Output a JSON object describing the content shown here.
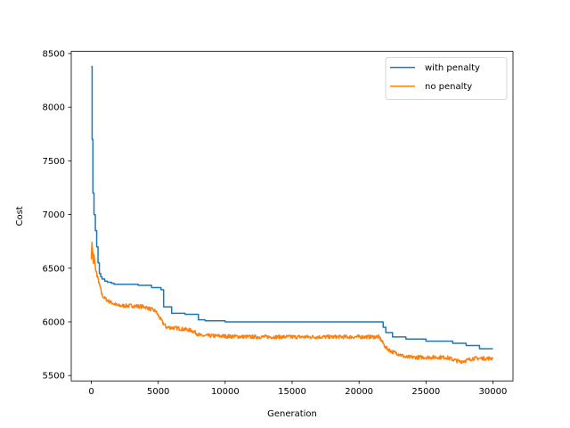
{
  "chart_data": {
    "type": "line",
    "title": "",
    "xlabel": "Generation",
    "ylabel": "Cost",
    "xlim": [
      -1500,
      31500
    ],
    "ylim": [
      5450,
      8520
    ],
    "xticks": [
      0,
      5000,
      10000,
      15000,
      20000,
      25000,
      30000
    ],
    "yticks": [
      5500,
      6000,
      6500,
      7000,
      7500,
      8000,
      8500
    ],
    "grid": false,
    "legend_position": "top-right",
    "series": [
      {
        "name": "with penalty",
        "color": "#1f77b4",
        "style": "step",
        "x": [
          0,
          60,
          120,
          200,
          300,
          400,
          500,
          600,
          700,
          800,
          1000,
          1200,
          1500,
          1700,
          3500,
          4500,
          5200,
          5400,
          6000,
          7000,
          8000,
          8500,
          10000,
          15000,
          20000,
          21600,
          21800,
          22000,
          22500,
          23500,
          25000,
          26500,
          27000,
          28000,
          29000,
          30000
        ],
        "y": [
          8380,
          7700,
          7200,
          7000,
          6850,
          6700,
          6550,
          6450,
          6420,
          6400,
          6380,
          6370,
          6360,
          6350,
          6340,
          6320,
          6300,
          6140,
          6080,
          6070,
          6020,
          6010,
          6000,
          6000,
          6000,
          6000,
          5950,
          5900,
          5860,
          5840,
          5820,
          5820,
          5800,
          5780,
          5750,
          5750
        ]
      },
      {
        "name": "no penalty",
        "color": "#ff7f0e",
        "style": "noisy",
        "x": [
          0,
          50,
          100,
          150,
          200,
          300,
          400,
          500,
          600,
          700,
          800,
          1000,
          1200,
          1500,
          2000,
          3000,
          4000,
          4800,
          5300,
          5600,
          6500,
          7500,
          8200,
          9000,
          12000,
          16000,
          20000,
          21500,
          21800,
          22000,
          22500,
          23000,
          23500,
          25000,
          26500,
          27000,
          27500,
          28000,
          28500,
          29000,
          30000
        ],
        "y": [
          6600,
          6750,
          6650,
          6550,
          6620,
          6500,
          6450,
          6400,
          6350,
          6300,
          6250,
          6220,
          6200,
          6180,
          6150,
          6150,
          6140,
          6100,
          6000,
          5950,
          5940,
          5920,
          5870,
          5870,
          5860,
          5860,
          5860,
          5860,
          5800,
          5760,
          5720,
          5700,
          5670,
          5670,
          5670,
          5650,
          5630,
          5640,
          5660,
          5660,
          5660
        ],
        "noise_amplitude": 18
      }
    ]
  }
}
